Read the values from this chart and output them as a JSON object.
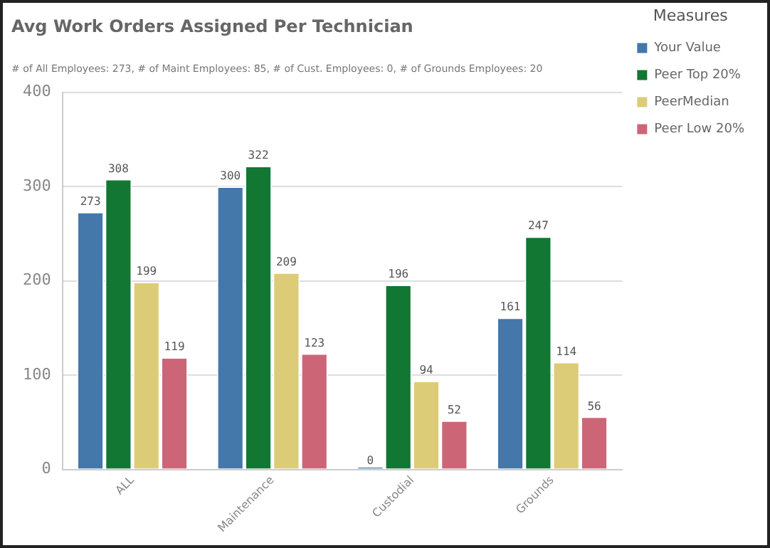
{
  "chart_data": {
    "type": "bar",
    "title": "Avg Work Orders Assigned Per Technician",
    "subtitle": "# of All Employees: 273, # of Maint Employees: 85, # of Cust. Employees: 0, # of Grounds Employees: 20",
    "categories": [
      "ALL",
      "Maintenance",
      "Custodial",
      "Grounds"
    ],
    "series": [
      {
        "name": "Your Value",
        "color": "#4477aa",
        "values": [
          273,
          300,
          0,
          161
        ]
      },
      {
        "name": "Peer Top 20%",
        "color": "#117733",
        "values": [
          308,
          322,
          196,
          247
        ]
      },
      {
        "name": "PeerMedian",
        "color": "#ddcc77",
        "values": [
          199,
          209,
          94,
          114
        ]
      },
      {
        "name": "Peer Low 20%",
        "color": "#cc6677",
        "values": [
          119,
          123,
          52,
          56
        ]
      }
    ],
    "ylim": [
      0,
      400
    ],
    "yticks": [
      0,
      100,
      200,
      300,
      400
    ],
    "grid": "y",
    "legend": "right",
    "legend_title": "Measures",
    "data_labels": true
  }
}
